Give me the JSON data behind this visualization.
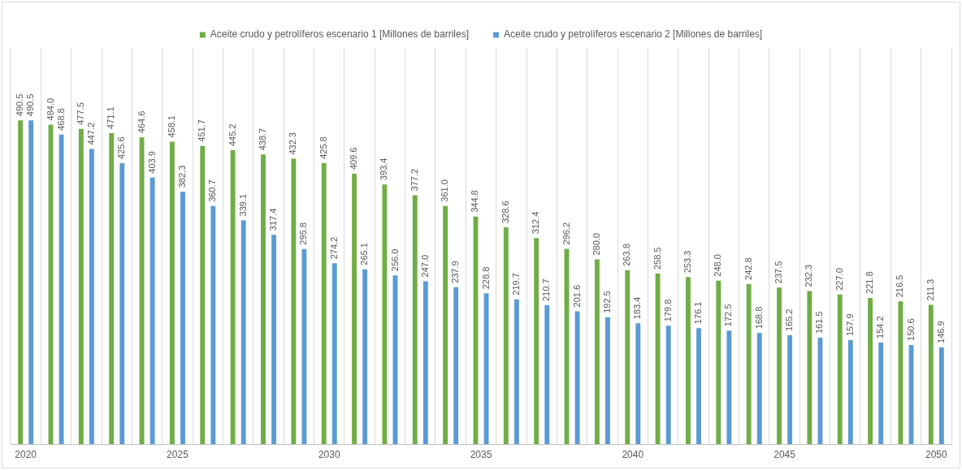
{
  "chart_data": {
    "type": "bar",
    "categories": [
      "2020",
      null,
      null,
      null,
      null,
      "2025",
      null,
      null,
      null,
      null,
      "2030",
      null,
      null,
      null,
      null,
      "2035",
      null,
      null,
      null,
      null,
      "2040",
      null,
      null,
      null,
      null,
      "2045",
      null,
      null,
      null,
      null,
      "2050"
    ],
    "series": [
      {
        "name": "Aceite crudo y petrolíferos escenario 1 [Millones de barriles]",
        "color": "#70ad47",
        "values": [
          490.5,
          484.0,
          477.5,
          471.1,
          464.6,
          458.1,
          451.7,
          445.2,
          438.7,
          432.3,
          425.8,
          409.6,
          393.4,
          377.2,
          361.0,
          344.8,
          328.6,
          312.4,
          296.2,
          280.0,
          263.8,
          258.5,
          253.3,
          248.0,
          242.8,
          237.5,
          232.3,
          227.0,
          221.8,
          216.5,
          211.3
        ],
        "value_labels": [
          "490.5",
          "484.0",
          "477.5",
          "471.1",
          "464.6",
          "458.1",
          "451.7",
          "445.2",
          "438.7",
          "432.3",
          "425.8",
          "409.6",
          "393.4",
          "377.2",
          "361.0",
          "344.8",
          "328.6",
          "312.4",
          "296.2",
          "280.0",
          "263.8",
          "258.5",
          "253.3",
          "248.0",
          "242.8",
          "237.5",
          "232.3",
          "227.0",
          "221.8",
          "216.5",
          "211.3"
        ]
      },
      {
        "name": "Aceite crudo y petrolíferos escenario 2 [Millones de barriles]",
        "color": "#5b9bd5",
        "values": [
          490.5,
          468.8,
          447.2,
          425.6,
          403.9,
          382.3,
          360.7,
          339.1,
          317.4,
          295.8,
          274.2,
          265.1,
          256.0,
          247.0,
          237.9,
          228.8,
          219.7,
          210.7,
          201.6,
          192.5,
          183.4,
          179.8,
          176.1,
          172.5,
          168.8,
          165.2,
          161.5,
          157.9,
          154.2,
          150.6,
          146.9
        ],
        "value_labels": [
          "490.5",
          "468.8",
          "447.2",
          "425.6",
          "403.9",
          "382.3",
          "360.7",
          "339.1",
          "317.4",
          "295.8",
          "274.2",
          "265.1",
          "256.0",
          "247.0",
          "237.9",
          "228.8",
          "219.7",
          "210.7",
          "201.6",
          "192.5",
          "183.4",
          "179.8",
          "176.1",
          "172.5",
          "168.8",
          "165.2",
          "161.5",
          "157.9",
          "154.2",
          "150.6",
          "146.9"
        ]
      }
    ],
    "grid": "x",
    "legend": "top"
  }
}
